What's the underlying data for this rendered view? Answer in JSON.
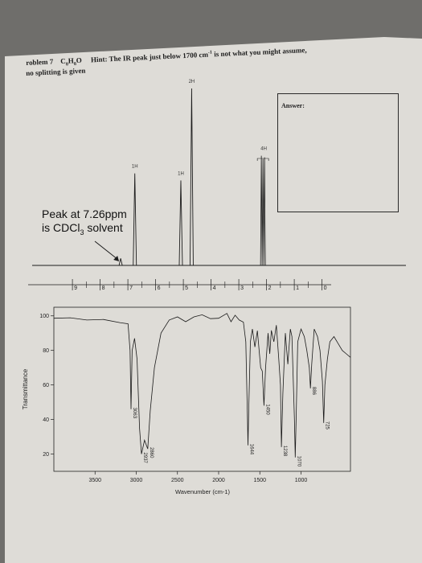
{
  "header": {
    "problem": "roblem 7",
    "formula": "C",
    "formula_parts": [
      "C",
      "8",
      "H",
      "8",
      "O"
    ],
    "hint": "Hint: The IR peak just below 1700 cm",
    "hint_sup": "-1",
    "hint_end": " is not what you might assume,",
    "splitting": "no splitting is given"
  },
  "answer": {
    "label": "Answer:"
  },
  "annotation": {
    "line1": "Peak at 7.26ppm",
    "line2_a": "is CDCl",
    "line2_sub": "3",
    "line2_b": " solvent"
  },
  "colors": {
    "paper": "#dedcd7",
    "ink": "#1c1c1c",
    "background": "#6f6e6b"
  },
  "chart_data": [
    {
      "type": "line",
      "xlim": [
        10,
        0
      ],
      "x_ticks": [
        9,
        8,
        7,
        6,
        5,
        4,
        3,
        2,
        1,
        0
      ],
      "x_ticklabels": [
        "9",
        "8",
        "7",
        "6",
        "5",
        "4",
        "3",
        "2",
        "1",
        "0"
      ],
      "peaks": [
        {
          "ppm": 7.26,
          "height": 0.04,
          "label": ""
        },
        {
          "ppm": 6.75,
          "height": 0.52,
          "label": "1H"
        },
        {
          "ppm": 5.09,
          "height": 0.48,
          "label": "1H"
        },
        {
          "ppm": 4.7,
          "height": 1.0,
          "label": "2H"
        },
        {
          "ppm": 2.1,
          "height": 0.62,
          "label": "4H"
        }
      ]
    },
    {
      "type": "line",
      "xlim": [
        4000,
        400
      ],
      "ylim": [
        10,
        105
      ],
      "xlabel": "Wavenumber (cm-1)",
      "ylabel": "Transmittance",
      "x_ticks": [
        3500,
        3000,
        2500,
        2000,
        1500,
        1000
      ],
      "y_ticks": [
        20,
        40,
        60,
        80,
        100
      ],
      "series": [
        {
          "points": [
            [
              4000,
              99
            ],
            [
              3800,
              98.5
            ],
            [
              3600,
              98
            ],
            [
              3400,
              97.5
            ],
            [
              3200,
              96.5
            ],
            [
              3100,
              95
            ],
            [
              3075,
              80
            ],
            [
              3063,
              46
            ],
            [
              3050,
              80
            ],
            [
              3020,
              87
            ],
            [
              2990,
              75
            ],
            [
              2960,
              35
            ],
            [
              2937,
              20
            ],
            [
              2900,
              28
            ],
            [
              2860,
              23
            ],
            [
              2830,
              45
            ],
            [
              2780,
              70
            ],
            [
              2700,
              90
            ],
            [
              2600,
              98
            ],
            [
              2500,
              99
            ],
            [
              2400,
              97
            ],
            [
              2300,
              99
            ],
            [
              2200,
              101
            ],
            [
              2100,
              98
            ],
            [
              2000,
              99
            ],
            [
              1900,
              101
            ],
            [
              1850,
              97
            ],
            [
              1800,
              100
            ],
            [
              1750,
              98
            ],
            [
              1700,
              96
            ],
            [
              1670,
              85
            ],
            [
              1650,
              40
            ],
            [
              1644,
              25
            ],
            [
              1635,
              45
            ],
            [
              1615,
              85
            ],
            [
              1590,
              92
            ],
            [
              1560,
              82
            ],
            [
              1530,
              91
            ],
            [
              1490,
              70
            ],
            [
              1470,
              68
            ],
            [
              1450,
              48
            ],
            [
              1430,
              70
            ],
            [
              1400,
              90
            ],
            [
              1380,
              78
            ],
            [
              1360,
              92
            ],
            [
              1330,
              85
            ],
            [
              1300,
              95
            ],
            [
              1270,
              75
            ],
            [
              1250,
              60
            ],
            [
              1238,
              24
            ],
            [
              1220,
              55
            ],
            [
              1190,
              90
            ],
            [
              1160,
              72
            ],
            [
              1130,
              92
            ],
            [
              1110,
              88
            ],
            [
              1080,
              40
            ],
            [
              1070,
              18
            ],
            [
              1060,
              40
            ],
            [
              1040,
              85
            ],
            [
              1000,
              92
            ],
            [
              960,
              88
            ],
            [
              930,
              80
            ],
            [
              900,
              70
            ],
            [
              886,
              58
            ],
            [
              870,
              72
            ],
            [
              840,
              92
            ],
            [
              800,
              88
            ],
            [
              770,
              80
            ],
            [
              740,
              62
            ],
            [
              725,
              38
            ],
            [
              710,
              60
            ],
            [
              680,
              75
            ],
            [
              650,
              85
            ],
            [
              600,
              88
            ],
            [
              550,
              84
            ],
            [
              500,
              80
            ],
            [
              450,
              78
            ],
            [
              400,
              76
            ]
          ]
        }
      ],
      "annotations": [
        {
          "x": 3063,
          "y": 46,
          "label": "3063"
        },
        {
          "x": 2937,
          "y": 20,
          "label": "2937"
        },
        {
          "x": 2860,
          "y": 23,
          "label": "2860"
        },
        {
          "x": 1644,
          "y": 25,
          "label": "1644"
        },
        {
          "x": 1450,
          "y": 48,
          "label": "1450"
        },
        {
          "x": 1238,
          "y": 24,
          "label": "1238"
        },
        {
          "x": 1070,
          "y": 18,
          "label": "1070"
        },
        {
          "x": 886,
          "y": 58,
          "label": "886"
        },
        {
          "x": 725,
          "y": 38,
          "label": "725"
        }
      ]
    }
  ]
}
